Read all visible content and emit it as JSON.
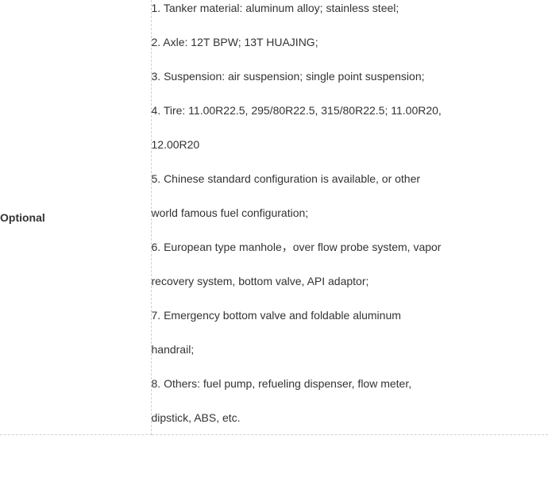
{
  "table": {
    "label": "Optional",
    "label_fontweight": 700,
    "label_color": "#333333",
    "border_color": "#d0d0d0",
    "background_color": "#ffffff",
    "text_color": "#333333",
    "font_size_pt": 10.5,
    "line_spacing": 22,
    "items": [
      "1.  Tanker material: aluminum alloy; stainless steel;",
      "2.  Axle: 12T BPW; 13T HUAJING;",
      "3.  Suspension: air suspension; single point suspension;",
      "4.  Tire: 11.00R22.5, 295/80R22.5, 315/80R22.5; 11.00R20,",
      "12.00R20",
      "5.  Chinese standard configuration is available, or other",
      "world famous fuel configuration;",
      "6.  European type manhole，over flow probe system, vapor",
      "recovery system, bottom valve, API adaptor;",
      "7.  Emergency bottom valve and foldable aluminum",
      "handrail;",
      "8.  Others: fuel pump, refueling dispenser, flow meter,",
      "dipstick, ABS, etc."
    ]
  }
}
